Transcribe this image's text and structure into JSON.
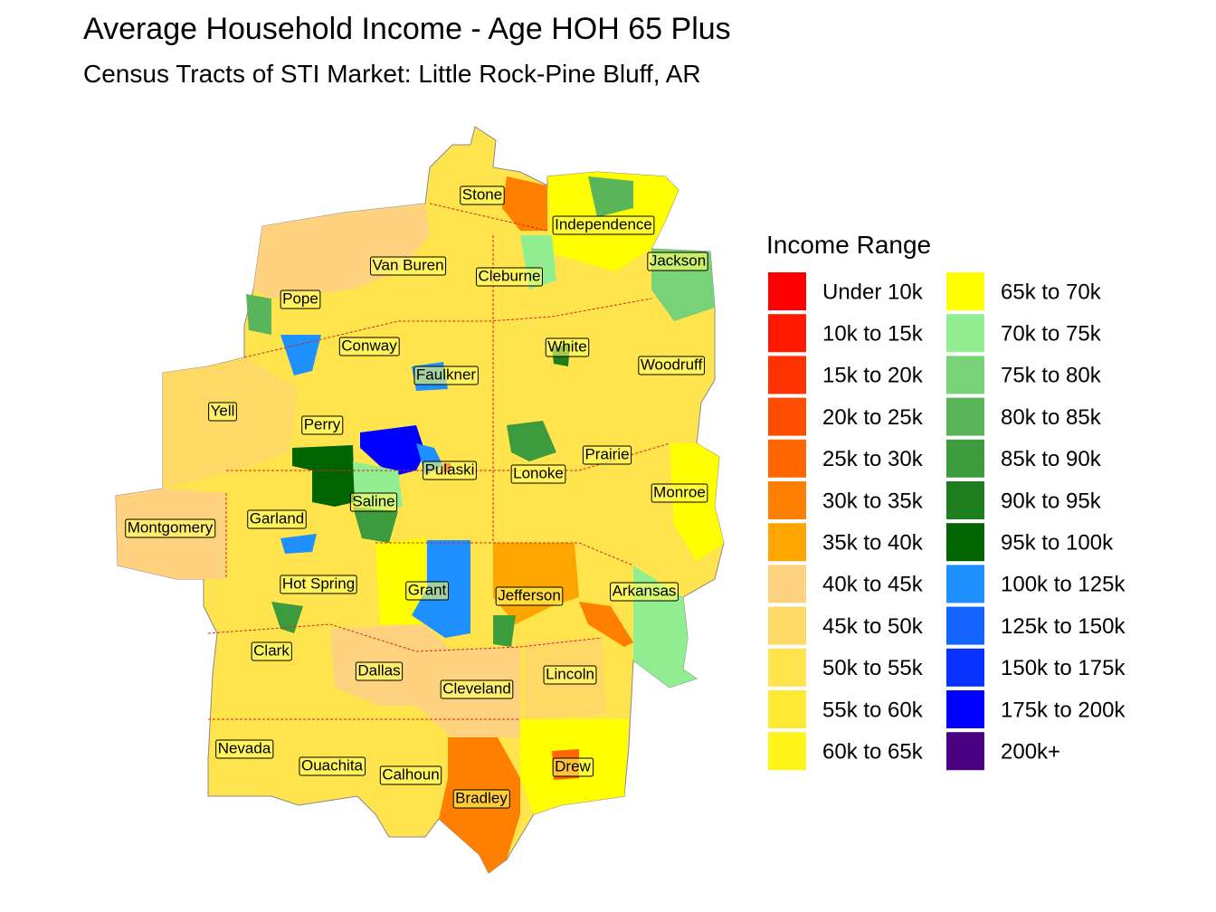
{
  "title": "Average Household Income - Age HOH 65 Plus",
  "subtitle": "Census Tracts of STI Market: Little Rock-Pine Bluff, AR",
  "legend": {
    "title": "Income Range",
    "items": [
      {
        "label": "Under 10k",
        "color": "#FF0000"
      },
      {
        "label": "10k to 15k",
        "color": "#FF1A00"
      },
      {
        "label": "15k to 20k",
        "color": "#FF3300"
      },
      {
        "label": "20k to 25k",
        "color": "#FF4D00"
      },
      {
        "label": "25k to 30k",
        "color": "#FF6600"
      },
      {
        "label": "30k to 35k",
        "color": "#FF8000"
      },
      {
        "label": "35k to 40k",
        "color": "#FFA500"
      },
      {
        "label": "40k to 45k",
        "color": "#FFD280"
      },
      {
        "label": "45k to 50k",
        "color": "#FFD966"
      },
      {
        "label": "50k to 55k",
        "color": "#FFE44D"
      },
      {
        "label": "55k to 60k",
        "color": "#FFEA33"
      },
      {
        "label": "60k to 65k",
        "color": "#FFF51A"
      },
      {
        "label": "65k to 70k",
        "color": "#FFFF00"
      },
      {
        "label": "70k to 75k",
        "color": "#90EE90"
      },
      {
        "label": "75k to 80k",
        "color": "#78D278"
      },
      {
        "label": "80k to 85k",
        "color": "#5AB45A"
      },
      {
        "label": "85k to 90k",
        "color": "#3C9B3C"
      },
      {
        "label": "90k to 95k",
        "color": "#1E7D1E"
      },
      {
        "label": "95k to 100k",
        "color": "#006400"
      },
      {
        "label": "100k to 125k",
        "color": "#1E90FF"
      },
      {
        "label": "125k to 150k",
        "color": "#1464FF"
      },
      {
        "label": "150k to 175k",
        "color": "#0A32FF"
      },
      {
        "label": "175k to 200k",
        "color": "#0000FF"
      },
      {
        "label": "200k+",
        "color": "#4B0082"
      }
    ]
  },
  "counties": [
    "Stone",
    "Independence",
    "Van Buren",
    "Cleburne",
    "Jackson",
    "Pope",
    "Conway",
    "White",
    "Faulkner",
    "Woodruff",
    "Yell",
    "Perry",
    "Prairie",
    "Pulaski",
    "Lonoke",
    "Monroe",
    "Saline",
    "Montgomery",
    "Garland",
    "Hot Spring",
    "Grant",
    "Jefferson",
    "Arkansas",
    "Clark",
    "Dallas",
    "Lincoln",
    "Cleveland",
    "Nevada",
    "Ouachita",
    "Calhoun",
    "Drew",
    "Bradley"
  ]
}
